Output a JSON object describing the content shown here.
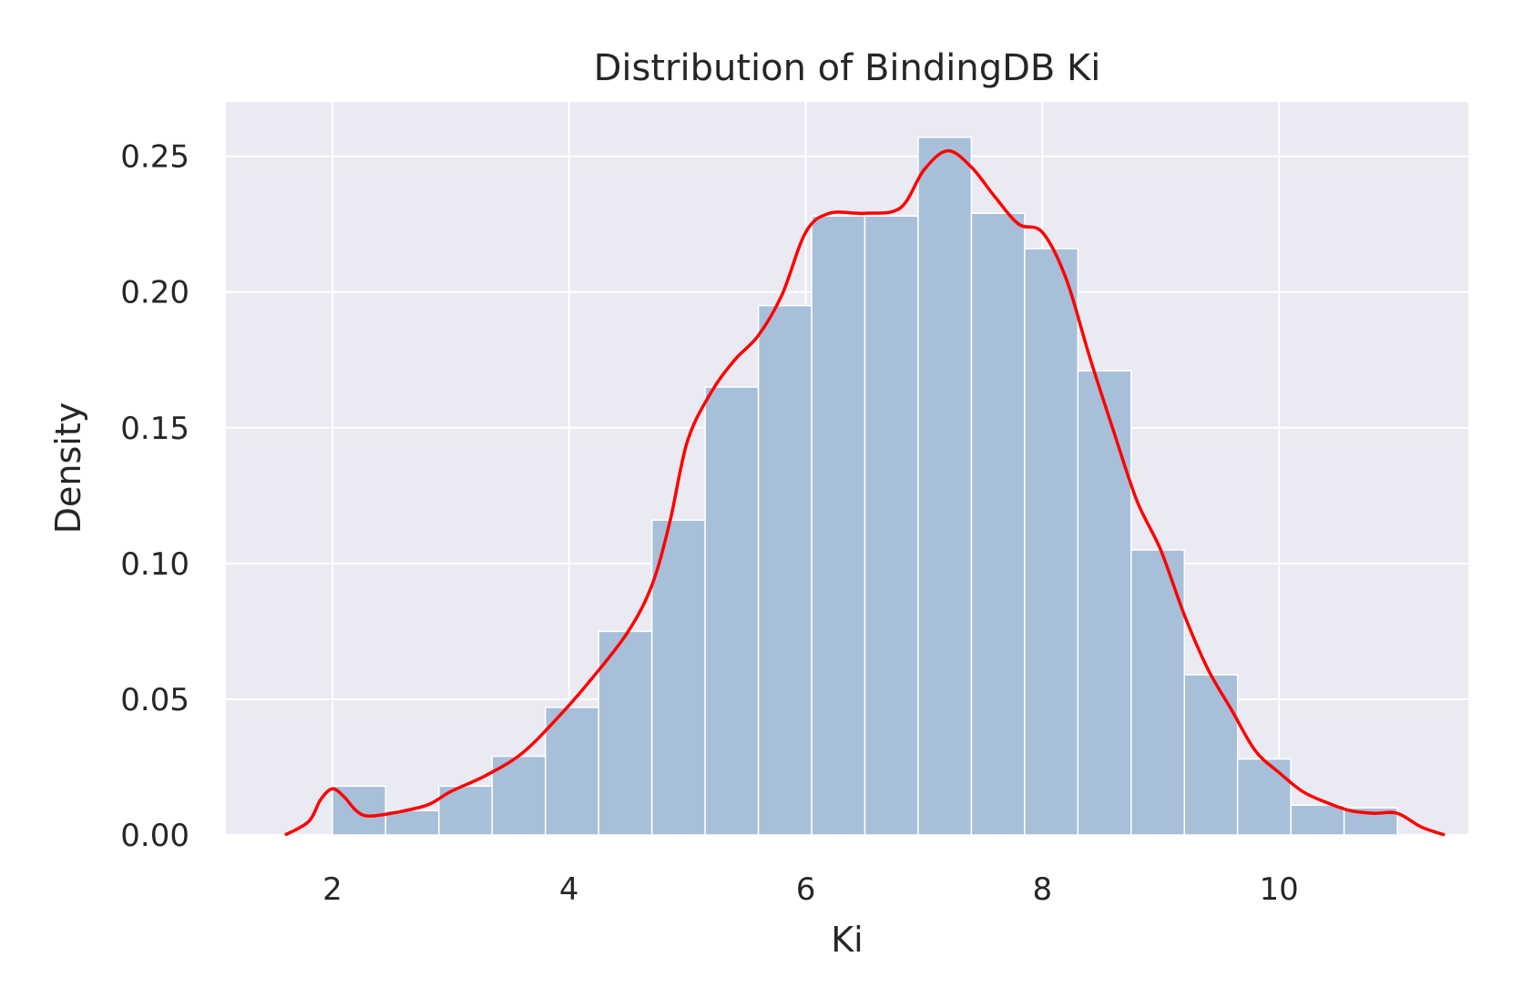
{
  "chart_data": {
    "type": "bar",
    "title": "Distribution of BindingDB Ki",
    "xlabel": "Ki",
    "ylabel": "Density",
    "xlim": [
      1.1,
      11.6
    ],
    "ylim": [
      0,
      0.27
    ],
    "x_ticks": [
      2,
      4,
      6,
      8,
      10
    ],
    "x_tick_labels": [
      "2",
      "4",
      "6",
      "8",
      "10"
    ],
    "y_ticks": [
      0,
      0.05,
      0.1,
      0.15,
      0.2,
      0.25
    ],
    "y_tick_labels": [
      "0.00",
      "0.05",
      "0.10",
      "0.15",
      "0.20",
      "0.25"
    ],
    "grid": true,
    "colors": {
      "background": "#eaeaf2",
      "grid": "#ffffff",
      "bar": "#a8bfd9",
      "bar_edge": "#ffffff",
      "kde": "#ff0000"
    },
    "histogram": {
      "bin_start": 2.0,
      "bin_width": 0.45,
      "values": [
        0.018,
        0.009,
        0.018,
        0.029,
        0.047,
        0.075,
        0.116,
        0.165,
        0.195,
        0.228,
        0.228,
        0.257,
        0.229,
        0.216,
        0.171,
        0.105,
        0.059,
        0.028,
        0.011,
        0.01
      ]
    },
    "kde": {
      "x": [
        1.6,
        1.8,
        1.9,
        2.0,
        2.1,
        2.2,
        2.3,
        2.5,
        2.8,
        3.0,
        3.3,
        3.6,
        3.9,
        4.2,
        4.5,
        4.7,
        4.85,
        5.0,
        5.2,
        5.4,
        5.6,
        5.8,
        6.0,
        6.2,
        6.5,
        6.8,
        7.0,
        7.2,
        7.4,
        7.6,
        7.8,
        8.0,
        8.2,
        8.4,
        8.6,
        8.8,
        9.0,
        9.2,
        9.4,
        9.6,
        9.8,
        10.0,
        10.2,
        10.4,
        10.6,
        10.8,
        11.0,
        11.2,
        11.4
      ],
      "y": [
        0.0,
        0.005,
        0.013,
        0.017,
        0.014,
        0.009,
        0.007,
        0.008,
        0.011,
        0.016,
        0.022,
        0.03,
        0.043,
        0.058,
        0.075,
        0.092,
        0.115,
        0.145,
        0.163,
        0.175,
        0.184,
        0.199,
        0.222,
        0.229,
        0.229,
        0.231,
        0.245,
        0.252,
        0.246,
        0.235,
        0.225,
        0.222,
        0.205,
        0.176,
        0.149,
        0.123,
        0.105,
        0.081,
        0.061,
        0.046,
        0.031,
        0.023,
        0.016,
        0.012,
        0.009,
        0.008,
        0.008,
        0.003,
        0.0
      ]
    }
  }
}
